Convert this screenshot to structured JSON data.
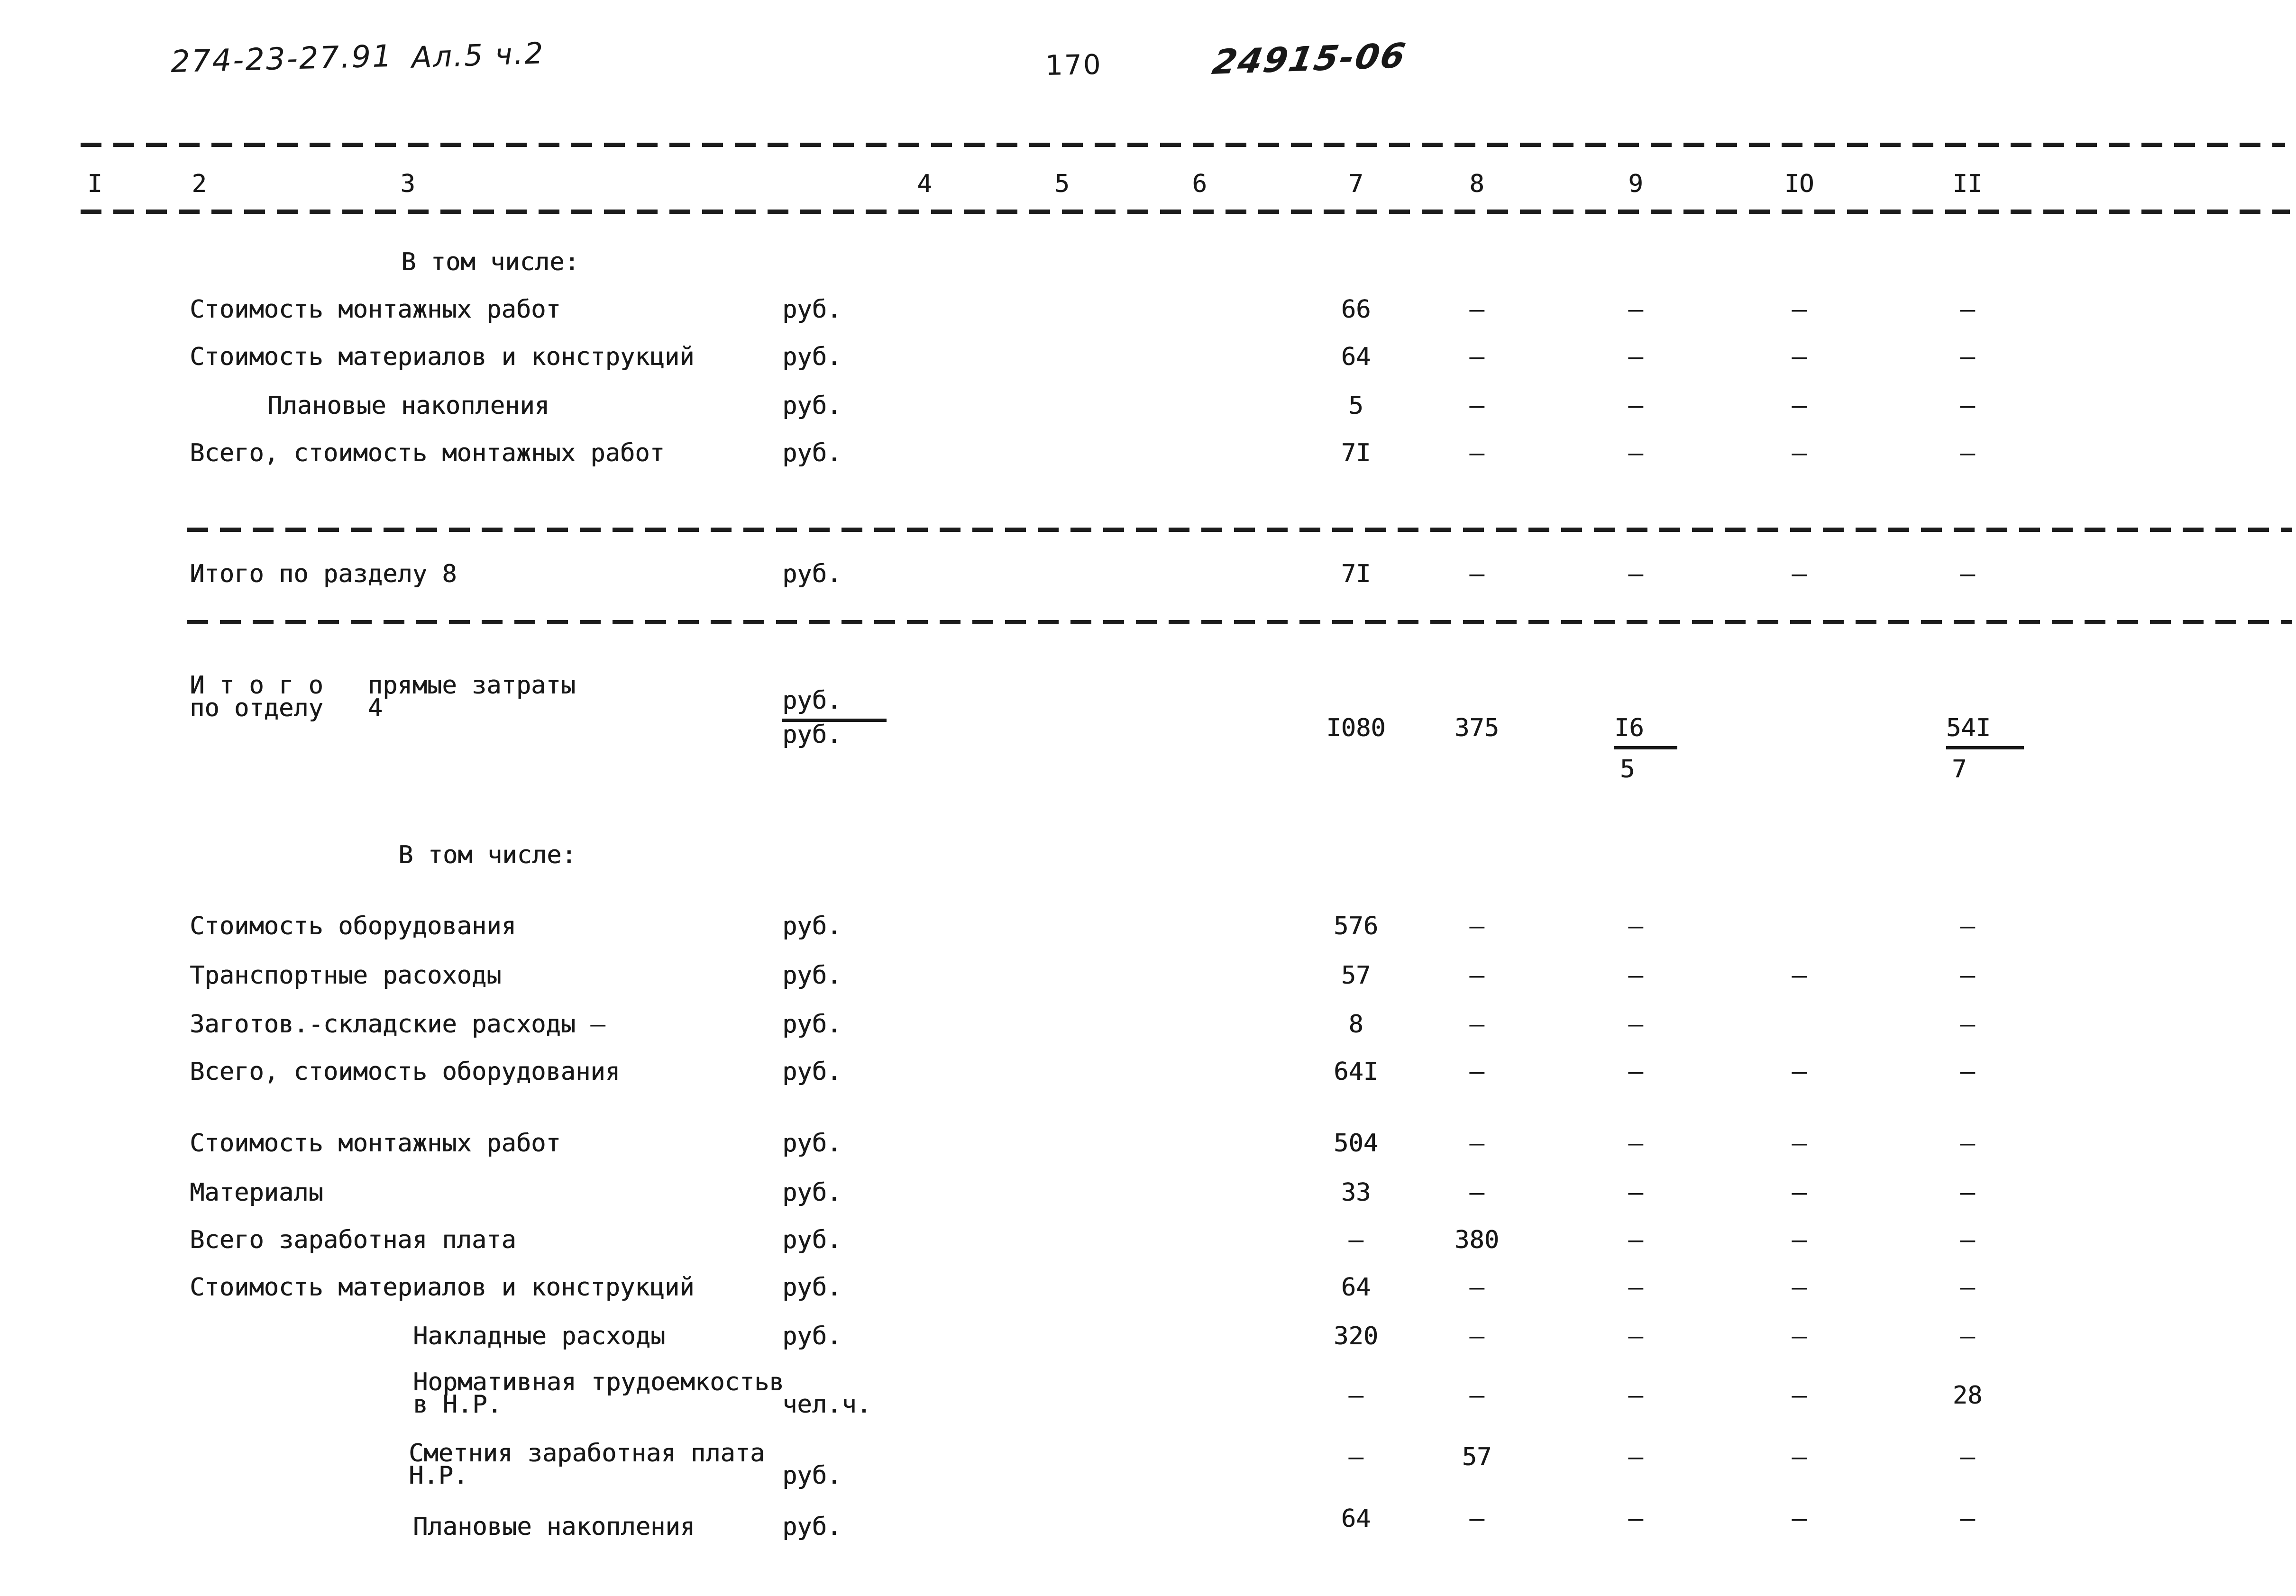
{
  "colors": {
    "ink": "#181818",
    "paper": "#ffffff"
  },
  "header": {
    "project_code": "274-23-27.91",
    "album": "Ал.5 ч.2",
    "page_number": "170",
    "doc_number": "24915-06"
  },
  "table": {
    "column_numbers": [
      "I",
      "2",
      "3",
      "4",
      "5",
      "6",
      "7",
      "8",
      "9",
      "IO",
      "II"
    ],
    "rows": [
      {
        "id": "v-tom-chisle-1",
        "kind": "section",
        "label": "В том числе:"
      },
      {
        "id": "stoimost-montazhnyh-rabot-1",
        "kind": "data",
        "label": "Стоимость монтажных работ",
        "unit": "руб.",
        "values": [
          "66",
          "–",
          "–",
          "–",
          "–"
        ]
      },
      {
        "id": "stoimost-materialov-i-konstrukcij-1",
        "kind": "data",
        "label": "Стоимость материалов и конструкций",
        "unit": "руб.",
        "values": [
          "64",
          "–",
          "–",
          "–",
          "–"
        ]
      },
      {
        "id": "planovye-nakopleniya-1",
        "kind": "data",
        "label": "Плановые накопления",
        "unit": "руб.",
        "values": [
          "5",
          "–",
          "–",
          "–",
          "–"
        ]
      },
      {
        "id": "vsego-stoimost-montazhnyh-rabot",
        "kind": "data",
        "label": "Всего, стоимость монтажных работ",
        "unit": "руб.",
        "values": [
          "7I",
          "–",
          "–",
          "–",
          "–"
        ]
      },
      {
        "id": "itogo-po-razdelu-8",
        "kind": "data",
        "label": "Итого по разделу 8",
        "unit": "руб.",
        "values": [
          "7I",
          "–",
          "–",
          "–",
          "–"
        ]
      },
      {
        "id": "itogo-pryamye-zatraty-po-otdelu-4",
        "kind": "itogo",
        "label_lines": [
          "И т о г о   прямые затраты",
          "по отделу   4"
        ],
        "unit_top": "руб.",
        "unit_bottom": "руб.",
        "values": [
          "I080",
          "375",
          {
            "top": "I6",
            "bottom": "5"
          },
          "",
          {
            "top": "54I",
            "bottom": "7"
          }
        ]
      },
      {
        "id": "v-tom-chisle-2",
        "kind": "section",
        "label": "В том числе:"
      },
      {
        "id": "stoimost-oborudovaniya",
        "kind": "data",
        "label": "Стоимость оборудования",
        "unit": "руб.",
        "values": [
          "576",
          "–",
          "–",
          "",
          "–"
        ]
      },
      {
        "id": "transportnye-rashody",
        "kind": "data",
        "label": "Транспортные расоходы",
        "unit": "руб.",
        "values": [
          "57",
          "–",
          "–",
          "–",
          "–"
        ]
      },
      {
        "id": "zagotov-skladskie-rashody",
        "kind": "data",
        "label": "Заготов.-складские расходы –",
        "unit": "руб.",
        "values": [
          "8",
          "–",
          "–",
          "",
          "–"
        ]
      },
      {
        "id": "vsego-stoimost-oborudovaniya",
        "kind": "data",
        "label": "Всего, стоимость оборудования",
        "unit": "руб.",
        "values": [
          "64I",
          "–",
          "–",
          "–",
          "–"
        ]
      },
      {
        "id": "stoimost-montazhnyh-rabot-2",
        "kind": "data",
        "label": "Стоимость монтажных работ",
        "unit": "руб.",
        "values": [
          "504",
          "–",
          "–",
          "–",
          "–"
        ]
      },
      {
        "id": "materialy",
        "kind": "data",
        "label": "Материалы",
        "unit": "руб.",
        "values": [
          "33",
          "–",
          "–",
          "–",
          "–"
        ]
      },
      {
        "id": "vsego-zarabotnaya-plata",
        "kind": "data",
        "label": "Всего заработная плата",
        "unit": "руб.",
        "values": [
          "–",
          "380",
          "–",
          "–",
          "–"
        ]
      },
      {
        "id": "stoimost-materialov-i-konstrukcij-2",
        "kind": "data",
        "label": "Стоимость материалов и конструкций",
        "unit": "руб.",
        "values": [
          "64",
          "–",
          "–",
          "–",
          "–"
        ]
      },
      {
        "id": "nakladnye-rashody",
        "kind": "data",
        "label": "Накладные расходы",
        "unit": "руб.",
        "values": [
          "320",
          "–",
          "–",
          "–",
          "–"
        ]
      },
      {
        "id": "normativnaya-trudoemkost-nr",
        "kind": "data",
        "label_lines": [
          "Нормативная трудоемкостьв",
          "в Н.Р."
        ],
        "unit": "чел.ч.",
        "values": [
          "–",
          "–",
          "–",
          "–",
          "28"
        ]
      },
      {
        "id": "smetnaya-zarabotnaya-plata-nr",
        "kind": "data",
        "label_lines": [
          "Сметния заработная плата",
          "Н.Р."
        ],
        "unit": "руб.",
        "values": [
          "–",
          "57",
          "–",
          "–",
          "–"
        ]
      },
      {
        "id": "planovye-nakopleniya-2",
        "kind": "data",
        "label": "Плановые накопления",
        "unit": "руб.",
        "values": [
          "64",
          "–",
          "–",
          "–",
          "–"
        ]
      }
    ]
  }
}
